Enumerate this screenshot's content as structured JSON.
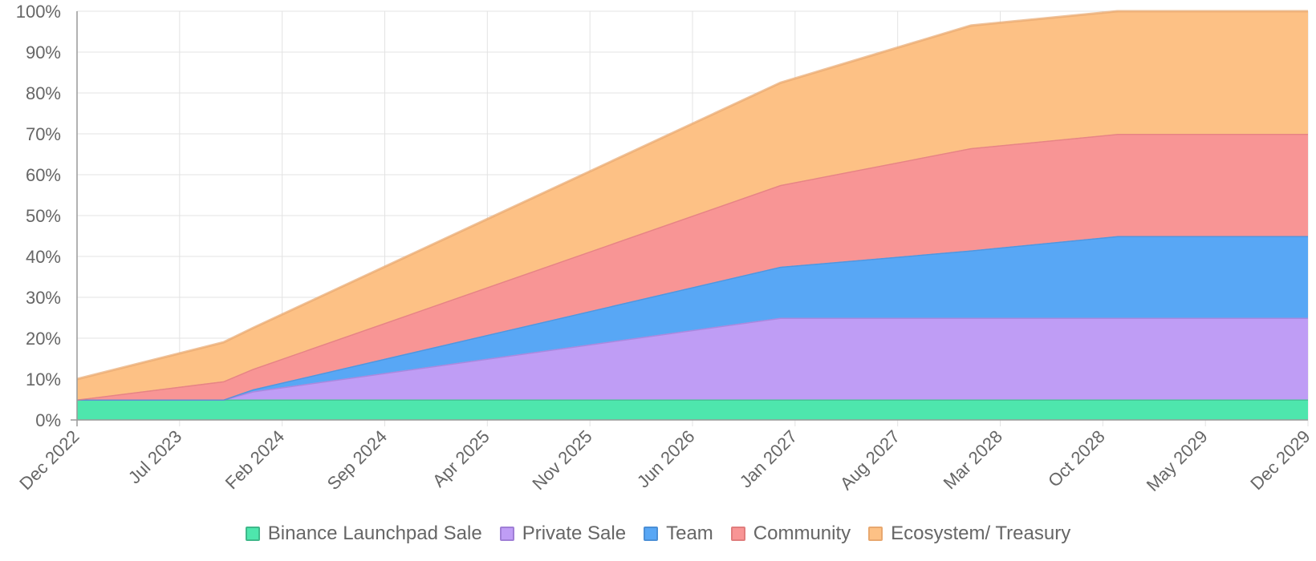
{
  "chart_data": {
    "type": "area",
    "stacked": true,
    "title": "",
    "xlabel": "",
    "ylabel": "",
    "ylim": [
      0,
      100
    ],
    "y_ticks": [
      "0%",
      "10%",
      "20%",
      "30%",
      "40%",
      "50%",
      "60%",
      "70%",
      "80%",
      "90%",
      "100%"
    ],
    "x_ticks": [
      "Dec 2022",
      "Jul 2023",
      "Feb 2024",
      "Sep 2024",
      "Apr 2025",
      "Nov 2025",
      "Jun 2026",
      "Jan 2027",
      "Aug 2027",
      "Mar 2028",
      "Oct 2028",
      "May 2029",
      "Dec 2029"
    ],
    "x": [
      "Dec 2022",
      "Oct 2023",
      "Dec 2023",
      "Dec 2026",
      "Jan 2028",
      "Nov 2028",
      "Dec 2029"
    ],
    "grid": true,
    "legend_position": "bottom",
    "series": [
      {
        "name": "Binance Launchpad Sale",
        "color": "#4ee6ad",
        "values": [
          5,
          5,
          5,
          5,
          5,
          5,
          5
        ]
      },
      {
        "name": "Private Sale",
        "color": "#bf9df5",
        "values": [
          0,
          0,
          2,
          20,
          20,
          20,
          20
        ]
      },
      {
        "name": "Team",
        "color": "#58a7f5",
        "values": [
          0,
          0,
          0.5,
          12.5,
          16.5,
          20,
          20
        ]
      },
      {
        "name": "Community",
        "color": "#f89595",
        "values": [
          0,
          4.5,
          5,
          20,
          25,
          25,
          25
        ]
      },
      {
        "name": "Ecosystem/ Treasury",
        "color": "#fdc185",
        "values": [
          5,
          9.5,
          10,
          25,
          30,
          30,
          30
        ]
      }
    ]
  }
}
